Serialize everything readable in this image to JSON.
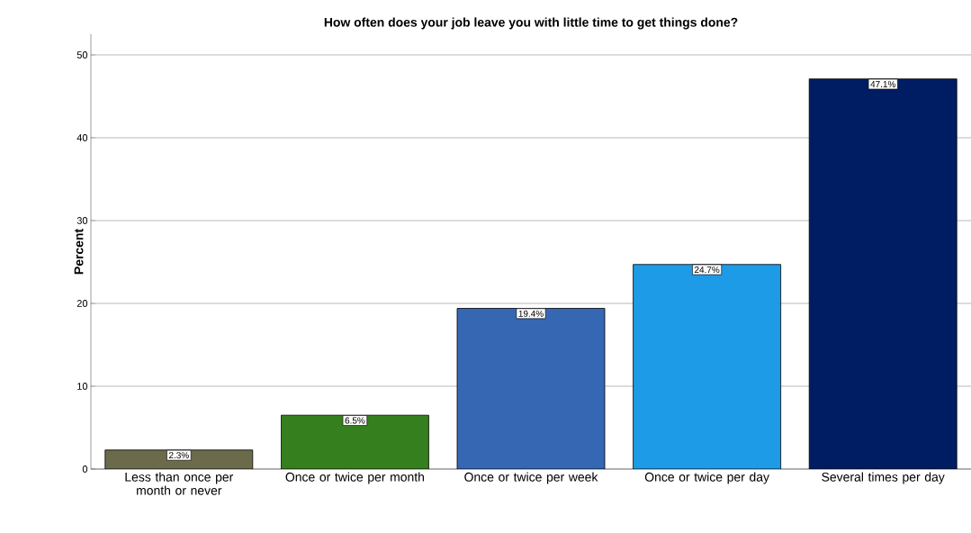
{
  "chart_data": {
    "type": "bar",
    "title": "How often does your job leave you with little time to get things done?",
    "ylabel": "Percent",
    "categories": [
      "Less than once per month or never",
      "Once or twice per month",
      "Once or twice per week",
      "Once or twice per day",
      "Several times per day"
    ],
    "values": [
      2.3,
      6.5,
      19.4,
      24.7,
      47.1
    ],
    "value_labels": [
      "2.3%",
      "6.5%",
      "19.4%",
      "24.7%",
      "47.1%"
    ],
    "colors": [
      "#6b6b4c",
      "#357f1e",
      "#3567b3",
      "#1e9be6",
      "#001c63"
    ],
    "ylim": [
      0,
      52.5
    ],
    "yticks": [
      0,
      10,
      20,
      30,
      40,
      50
    ],
    "grid": "y"
  }
}
